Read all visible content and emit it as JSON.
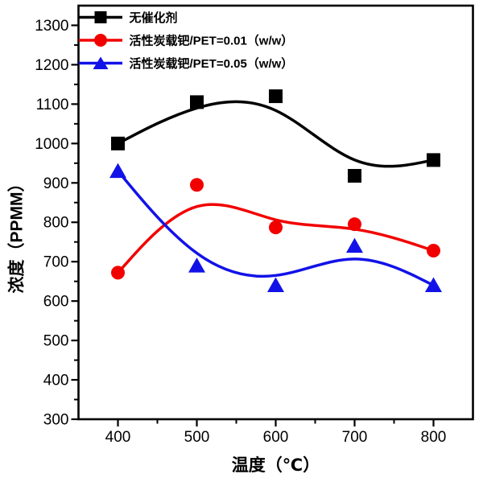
{
  "chart_data": {
    "type": "line",
    "title": "",
    "xlabel": "温度（℃）",
    "ylabel": "浓度（PPMM）",
    "x": [
      400,
      500,
      600,
      700,
      800
    ],
    "series": [
      {
        "name": "无催化剂",
        "color": "#000000",
        "marker": "square",
        "values": [
          1000,
          1105,
          1120,
          918,
          958
        ]
      },
      {
        "name": "活性炭载钯/PET=0.01（w/w）",
        "color": "#F20000",
        "marker": "circle",
        "values": [
          672,
          895,
          787,
          795,
          728
        ]
      },
      {
        "name": "活性炭载钯/PET=0.05（w/w）",
        "color": "#1212E8",
        "marker": "triangle-up",
        "values": [
          930,
          690,
          640,
          740,
          640
        ]
      }
    ],
    "x_range": [
      350,
      850
    ],
    "y_range": [
      300,
      1350
    ],
    "x_ticks": [
      400,
      500,
      600,
      700,
      800
    ],
    "y_ticks": [
      300,
      400,
      500,
      600,
      700,
      800,
      900,
      1000,
      1100,
      1200,
      1300
    ],
    "minor_tick_step_x": 50,
    "minor_tick_step_y": 50,
    "curve_style": "b-spline-smoothed",
    "legend_position": "top-left-inside",
    "grid": false,
    "background_color": "#FFFFFF",
    "axis_color": "#000000"
  }
}
